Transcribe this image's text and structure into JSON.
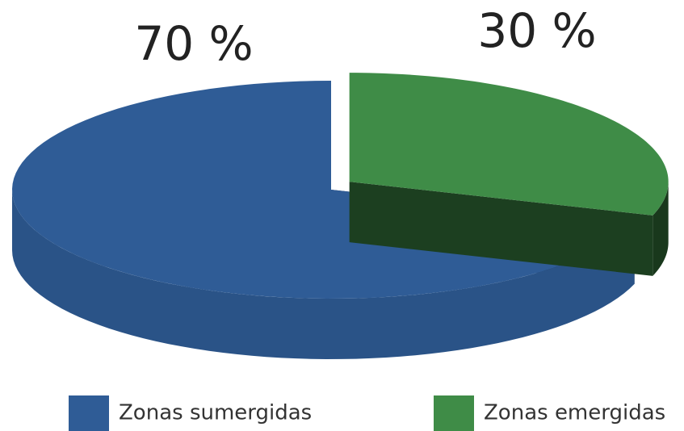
{
  "chart_data": {
    "type": "pie",
    "categories": [
      "Zonas sumergidas",
      "Zonas emergidas"
    ],
    "values": [
      70,
      30
    ],
    "value_labels": [
      "70 %",
      "30 %"
    ],
    "colors": [
      "#2f5c96",
      "#3f8c47"
    ]
  }
}
